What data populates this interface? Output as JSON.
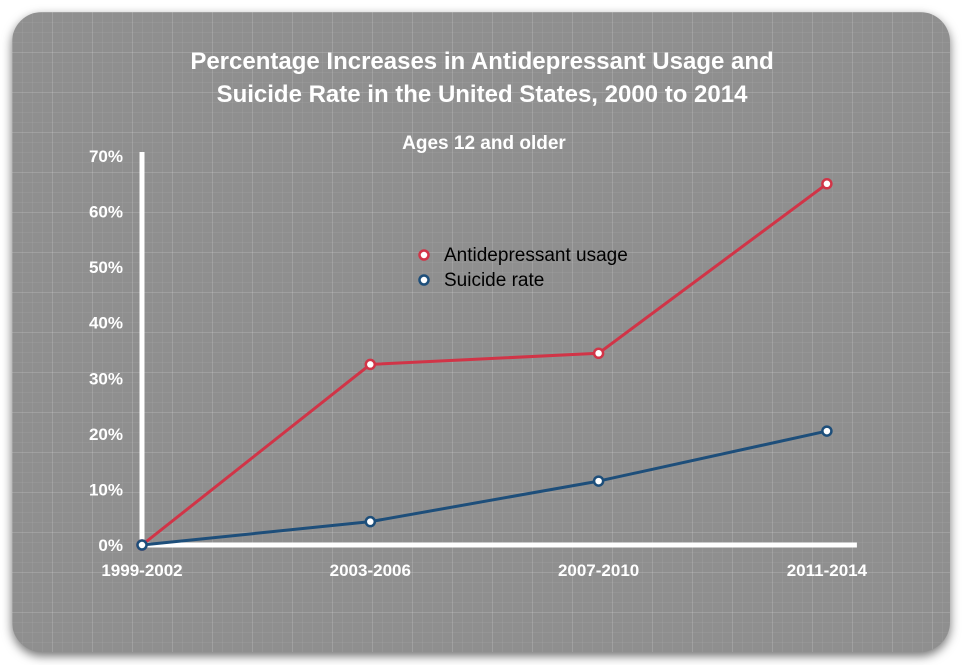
{
  "colors": {
    "background": "#8f8f8f",
    "axis": "#ffffff",
    "antidepressant": "#d13447",
    "suicide": "#1d4e7a"
  },
  "chart_data": {
    "type": "line",
    "title_line1": "Percentage Increases in Antidepressant Usage and",
    "title_line2": "Suicide Rate in the United States, 2000 to 2014",
    "subtitle": "Ages 12 and older",
    "xlabel": "",
    "ylabel": "",
    "categories": [
      "1999-2002",
      "2003-2006",
      "2007-2010",
      "2011-2014"
    ],
    "yticks": [
      "0%",
      "10%",
      "20%",
      "30%",
      "40%",
      "50%",
      "60%",
      "70%"
    ],
    "ylim": [
      0,
      70
    ],
    "grid": false,
    "legend_position": "center-top",
    "series": [
      {
        "name": "Antidepressant usage",
        "color": "#d13447",
        "values": [
          0,
          32.5,
          34.5,
          65
        ]
      },
      {
        "name": "Suicide rate",
        "color": "#1d4e7a",
        "values": [
          0,
          4.2,
          11.5,
          20.5
        ]
      }
    ]
  }
}
